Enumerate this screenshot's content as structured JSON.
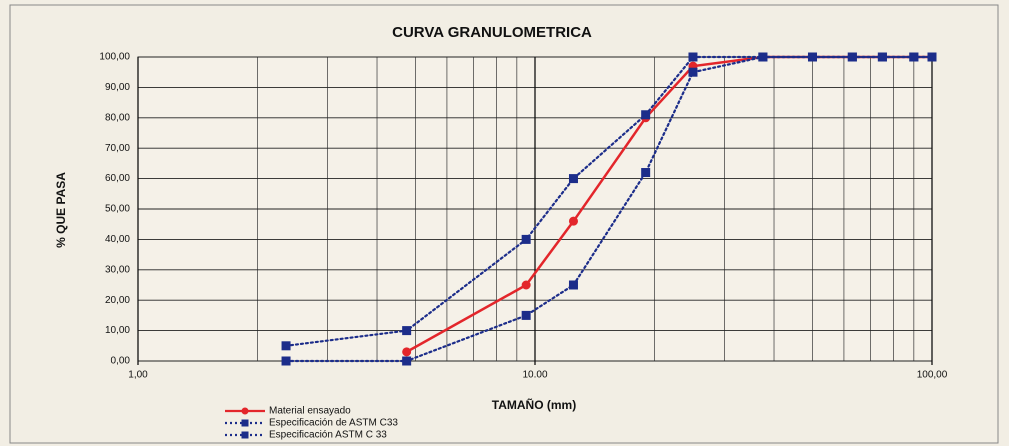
{
  "chart_data": {
    "type": "line",
    "title": "CURVA GRANULOMETRICA",
    "x_label": "TAMAÑO (mm)",
    "y_label": "% QUE PASA",
    "log_x": true,
    "grid": true,
    "x": [
      2.36,
      4.75,
      9.5,
      12.5,
      19,
      25,
      37.5,
      50,
      63,
      75,
      90,
      100
    ],
    "series": [
      {
        "name": "Material ensayado",
        "color": "#e3262b",
        "style": "solid",
        "marker": "circle",
        "values": [
          null,
          3,
          25,
          46,
          80,
          97,
          100,
          100,
          100,
          100,
          100,
          100
        ]
      },
      {
        "name": "Especificación de ASTM C33",
        "color": "#1c2d8a",
        "style": "dotted",
        "marker": "square",
        "values": [
          5,
          10,
          40,
          60,
          81,
          100,
          100,
          100,
          100,
          100,
          100,
          100
        ]
      },
      {
        "name": "Especificación ASTM C 33",
        "color": "#1c2d8a",
        "style": "dotted",
        "marker": "square",
        "values": [
          0,
          0,
          15,
          25,
          62,
          95,
          100,
          100,
          100,
          100,
          100,
          100
        ]
      }
    ],
    "xlim": [
      1,
      100
    ],
    "xticks": [
      {
        "value": 1,
        "label": "1,00"
      },
      {
        "value": 10,
        "label": "10.00"
      },
      {
        "value": 100,
        "label": "100,00"
      }
    ],
    "xminorgrid": [
      2,
      3,
      4,
      5,
      6,
      7,
      8,
      9,
      20,
      30,
      40,
      50,
      60,
      70,
      80,
      90
    ],
    "ylim": [
      0,
      100
    ],
    "yticks": [
      {
        "value": 0,
        "label": "0,00"
      },
      {
        "value": 10,
        "label": "10,00"
      },
      {
        "value": 20,
        "label": "20,00"
      },
      {
        "value": 30,
        "label": "30,00"
      },
      {
        "value": 40,
        "label": "40,00"
      },
      {
        "value": 50,
        "label": "50,00"
      },
      {
        "value": 60,
        "label": "60,00"
      },
      {
        "value": 70,
        "label": "70,00"
      },
      {
        "value": 80,
        "label": "80,00"
      },
      {
        "value": 90,
        "label": "90,00"
      },
      {
        "value": 100,
        "label": "100,00"
      }
    ]
  }
}
